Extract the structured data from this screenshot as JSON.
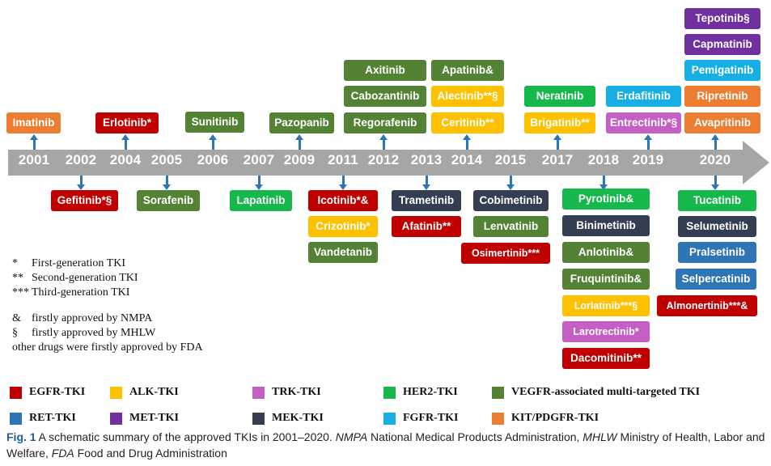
{
  "colors": {
    "egfr": "#c00000",
    "alk": "#ffc000",
    "trk": "#c55fc4",
    "her2": "#16b74b",
    "vegfr": "#548235",
    "ret": "#2e75b6",
    "met": "#7030a0",
    "mek": "#333f50",
    "fgfr": "#16aee5",
    "kit": "#ed7d31",
    "timeline": "#a6a6a6",
    "connector": "#2e75b6"
  },
  "years": [
    "2001",
    "2002",
    "2004",
    "2005",
    "2006",
    "2007",
    "2009",
    "2011",
    "2012",
    "2013",
    "2014",
    "2015",
    "2017",
    "2018",
    "2019",
    "2020"
  ],
  "drugs": {
    "imatinib": {
      "label": "Imatinib",
      "cls": "kit"
    },
    "erlotinib": {
      "label": "Erlotinib*",
      "cls": "egfr"
    },
    "sunitinib": {
      "label": "Sunitinib",
      "cls": "vegfr"
    },
    "pazopanib": {
      "label": "Pazopanib",
      "cls": "vegfr"
    },
    "axitinib": {
      "label": "Axitinib",
      "cls": "vegfr"
    },
    "cabozantinib": {
      "label": "Cabozantinib",
      "cls": "vegfr"
    },
    "regorafenib": {
      "label": "Regorafenib",
      "cls": "vegfr"
    },
    "apatinib": {
      "label": "Apatinib&",
      "cls": "vegfr"
    },
    "alectinib": {
      "label": "Alectinib**§",
      "cls": "alk"
    },
    "ceritinib": {
      "label": "Ceritinib**",
      "cls": "alk"
    },
    "neratinib": {
      "label": "Neratinib",
      "cls": "her2"
    },
    "brigatinib": {
      "label": "Brigatinib**",
      "cls": "alk"
    },
    "erdafitinib": {
      "label": "Erdafitinib",
      "cls": "fgfr"
    },
    "entrectinib": {
      "label": "Entrectinib*§",
      "cls": "trk"
    },
    "tepotinib": {
      "label": "Tepotinib§",
      "cls": "met"
    },
    "capmatinib": {
      "label": "Capmatinib",
      "cls": "met"
    },
    "pemigatinib": {
      "label": "Pemigatinib",
      "cls": "fgfr"
    },
    "ripretinib": {
      "label": "Ripretinib",
      "cls": "kit"
    },
    "avapritinib": {
      "label": "Avapritinib",
      "cls": "kit"
    },
    "gefitinib": {
      "label": "Gefitinib*§",
      "cls": "egfr"
    },
    "sorafenib": {
      "label": "Sorafenib",
      "cls": "vegfr"
    },
    "lapatinib": {
      "label": "Lapatinib",
      "cls": "her2"
    },
    "icotinib": {
      "label": "Icotinib*&",
      "cls": "egfr"
    },
    "crizotinib": {
      "label": "Crizotinib*",
      "cls": "alk"
    },
    "vandetanib": {
      "label": "Vandetanib",
      "cls": "vegfr"
    },
    "trametinib": {
      "label": "Trametinib",
      "cls": "mek"
    },
    "afatinib": {
      "label": "Afatinib**",
      "cls": "egfr"
    },
    "cobimetinib": {
      "label": "Cobimetinib",
      "cls": "mek"
    },
    "lenvatinib": {
      "label": "Lenvatinib",
      "cls": "vegfr"
    },
    "osimertinib": {
      "label": "Osimertinib***",
      "cls": "egfr"
    },
    "pyrotinib": {
      "label": "Pyrotinib&",
      "cls": "her2"
    },
    "binimetinib": {
      "label": "Binimetinib",
      "cls": "mek"
    },
    "anlotinib": {
      "label": "Anlotinib&",
      "cls": "vegfr"
    },
    "fruquintinib": {
      "label": "Fruquintinib&",
      "cls": "vegfr"
    },
    "lorlatinib": {
      "label": "Lorlatinib***§",
      "cls": "alk"
    },
    "larotrectinib": {
      "label": "Larotrectinib*",
      "cls": "trk"
    },
    "dacomitinib": {
      "label": "Dacomitinib**",
      "cls": "egfr"
    },
    "tucatinib": {
      "label": "Tucatinib",
      "cls": "her2"
    },
    "selumetinib": {
      "label": "Selumetinib",
      "cls": "mek"
    },
    "pralsetinib": {
      "label": "Pralsetinib",
      "cls": "ret"
    },
    "selpercatinib": {
      "label": "Selpercatinib",
      "cls": "ret"
    },
    "almonertinib": {
      "label": "Almonertinib***&",
      "cls": "egfr"
    }
  },
  "notes": [
    {
      "sym": "*",
      "text": "First-generation TKI"
    },
    {
      "sym": "**",
      "text": "Second-generation TKI"
    },
    {
      "sym": "***",
      "text": "Third-generation TKI"
    },
    {
      "sym": "&",
      "text": "firstly approved by NMPA"
    },
    {
      "sym": "§",
      "text": "firstly approved by MHLW"
    },
    {
      "sym": "",
      "text": "other drugs were firstly approved by FDA"
    }
  ],
  "legend": [
    {
      "label": "EGFR-TKI",
      "cls": "egfr"
    },
    {
      "label": "ALK-TKI",
      "cls": "alk"
    },
    {
      "label": "TRK-TKI",
      "cls": "trk"
    },
    {
      "label": "HER2-TKI",
      "cls": "her2"
    },
    {
      "label": "VEGFR-associated multi-targeted TKI",
      "cls": "vegfr"
    },
    {
      "label": "RET-TKI",
      "cls": "ret"
    },
    {
      "label": "MET-TKI",
      "cls": "met"
    },
    {
      "label": "MEK-TKI",
      "cls": "mek"
    },
    {
      "label": "FGFR-TKI",
      "cls": "fgfr"
    },
    {
      "label": "KIT/PDGFR-TKI",
      "cls": "kit"
    }
  ],
  "caption": {
    "fig": "Fig. 1",
    "text1": " A schematic summary of the approved TKIs in 2001–2020. ",
    "nmpa": "NMPA",
    "text2": " National Medical Products Administration, ",
    "mhlw": "MHLW",
    "text3": " Ministry of Health, Labor and Welfare, ",
    "fda": "FDA",
    "text4": " Food and Drug Administration"
  }
}
